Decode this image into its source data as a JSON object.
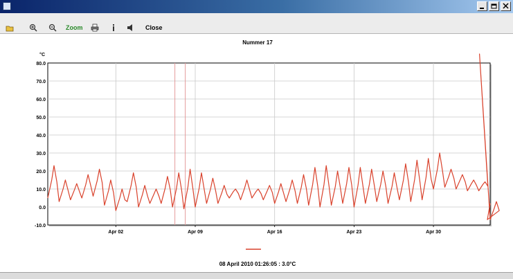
{
  "window": {
    "title": "",
    "icon": "app-icon",
    "controls": [
      "minimize-button",
      "maximize-button",
      "close-button"
    ]
  },
  "menu": {
    "items": [
      "",
      "",
      ""
    ]
  },
  "toolbar": {
    "zoom_label": "Zoom",
    "print_icon": "printer-icon",
    "close_label": "Close"
  },
  "chart_data": {
    "type": "line",
    "title": "Nummer 17",
    "ylabel": "°C",
    "xlabel": "",
    "ylim": [
      -10,
      80
    ],
    "xlim": [
      "2010-03-27",
      "2010-05-05"
    ],
    "yticks": [
      "80.0",
      "70.0",
      "60.0",
      "50.0",
      "40.0",
      "30.0",
      "20.0",
      "10.0",
      "0.0",
      "-10.0"
    ],
    "xticks": [
      {
        "date": "2010-04-02",
        "label": "Apr 02"
      },
      {
        "date": "2010-04-09",
        "label": "Apr 09"
      },
      {
        "date": "2010-04-16",
        "label": "Apr 16"
      },
      {
        "date": "2010-04-23",
        "label": "Apr 23"
      },
      {
        "date": "2010-04-30",
        "label": "Apr 30"
      }
    ],
    "grid": true,
    "line_color": "#d9412b",
    "grid_color": "#c8c8c8",
    "cursor": {
      "date": "2010-04-08",
      "value": 3.0
    },
    "series": [
      {
        "name": "",
        "x": [
          "2010-03-27",
          "2010-03-28",
          "2010-03-29",
          "2010-03-30",
          "2010-03-31",
          "2010-04-01",
          "2010-04-02",
          "2010-04-03",
          "2010-04-04",
          "2010-04-05",
          "2010-04-06",
          "2010-04-07",
          "2010-04-08",
          "2010-04-09",
          "2010-04-10",
          "2010-04-11",
          "2010-04-12",
          "2010-04-13",
          "2010-04-14",
          "2010-04-15",
          "2010-04-16",
          "2010-04-17",
          "2010-04-18",
          "2010-04-19",
          "2010-04-20",
          "2010-04-21",
          "2010-04-22",
          "2010-04-23",
          "2010-04-24",
          "2010-04-25",
          "2010-04-26",
          "2010-04-27",
          "2010-04-28",
          "2010-04-29",
          "2010-04-30",
          "2010-05-01",
          "2010-05-02",
          "2010-05-03",
          "2010-05-04",
          "2010-05-04",
          "2010-05-05"
        ],
        "high": [
          23,
          15,
          13,
          18,
          21,
          15,
          10,
          19,
          12,
          10,
          17,
          19,
          21,
          19,
          16,
          12,
          10,
          15,
          10,
          12,
          13,
          15,
          18,
          22,
          23,
          20,
          22,
          22,
          21,
          20,
          19,
          24,
          26,
          27,
          30,
          21,
          18,
          15,
          14,
          85,
          3
        ],
        "low": [
          5,
          3,
          4,
          5,
          6,
          1,
          -2,
          3,
          0,
          2,
          2,
          0,
          -1,
          0,
          2,
          2,
          5,
          4,
          5,
          4,
          2,
          3,
          2,
          1,
          0,
          1,
          2,
          0,
          2,
          3,
          2,
          4,
          3,
          4,
          10,
          11,
          10,
          9,
          9,
          85,
          -7
        ]
      }
    ]
  },
  "legend": {
    "entries": [
      {
        "label": "",
        "color": "#d9412b"
      }
    ]
  },
  "readout": {
    "text": "08 April 2010 01:26:05 : 3.0°C"
  },
  "status": {
    "left": "",
    "right": ""
  }
}
